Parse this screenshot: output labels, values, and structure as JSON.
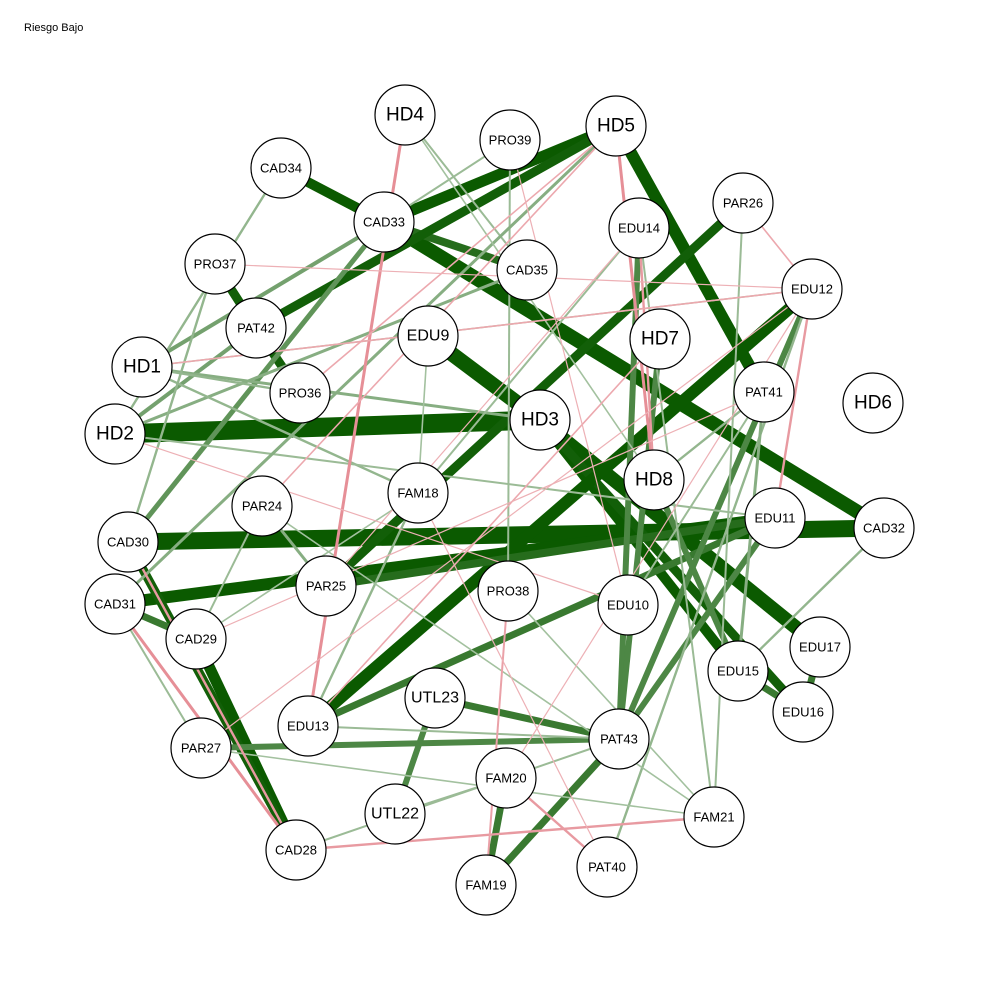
{
  "title": "Riesgo Bajo",
  "colors": {
    "positive": "#0b5a00",
    "negative": "#cc1a2a",
    "node_fill": "#ffffff",
    "node_stroke": "#000000"
  },
  "nodes": [
    {
      "id": "HD1",
      "big": true
    },
    {
      "id": "HD2",
      "big": true
    },
    {
      "id": "HD3",
      "big": true
    },
    {
      "id": "HD4",
      "big": true
    },
    {
      "id": "HD5",
      "big": true
    },
    {
      "id": "HD6",
      "big": true
    },
    {
      "id": "HD7",
      "big": true
    },
    {
      "id": "HD8",
      "big": true
    },
    {
      "id": "EDU9",
      "big": true
    },
    {
      "id": "EDU10"
    },
    {
      "id": "EDU11"
    },
    {
      "id": "EDU12"
    },
    {
      "id": "EDU13"
    },
    {
      "id": "EDU14"
    },
    {
      "id": "EDU15"
    },
    {
      "id": "EDU16"
    },
    {
      "id": "EDU17"
    },
    {
      "id": "FAM18"
    },
    {
      "id": "FAM19"
    },
    {
      "id": "FAM20"
    },
    {
      "id": "FAM21"
    },
    {
      "id": "UTL22",
      "big": true
    },
    {
      "id": "UTL23",
      "big": true
    },
    {
      "id": "PAR24"
    },
    {
      "id": "PAR25"
    },
    {
      "id": "PAR26"
    },
    {
      "id": "PAR27"
    },
    {
      "id": "CAD28"
    },
    {
      "id": "CAD29"
    },
    {
      "id": "CAD30"
    },
    {
      "id": "CAD31"
    },
    {
      "id": "CAD32"
    },
    {
      "id": "CAD33"
    },
    {
      "id": "CAD34"
    },
    {
      "id": "CAD35"
    },
    {
      "id": "PRO36"
    },
    {
      "id": "PRO37"
    },
    {
      "id": "PRO38"
    },
    {
      "id": "PRO39"
    },
    {
      "id": "PAT40"
    },
    {
      "id": "PAT41"
    },
    {
      "id": "PAT42"
    },
    {
      "id": "PAT43"
    }
  ],
  "edges": [
    [
      "HD2",
      "HD3",
      0.95
    ],
    [
      "HD3",
      "EDU9",
      0.75
    ],
    [
      "HD3",
      "EDU17",
      0.7
    ],
    [
      "CAD30",
      "CAD32",
      0.85
    ],
    [
      "CAD33",
      "CAD32",
      0.7
    ],
    [
      "CAD31",
      "EDU11",
      0.6
    ],
    [
      "CAD33",
      "HD5",
      0.55
    ],
    [
      "HD5",
      "PAT41",
      0.6
    ],
    [
      "HD3",
      "EDU15",
      0.5
    ],
    [
      "HD3",
      "EDU16",
      0.45
    ],
    [
      "EDU12",
      "EDU13",
      0.6
    ],
    [
      "CAD29",
      "CAD28",
      0.55
    ],
    [
      "CAD30",
      "CAD28",
      0.45
    ],
    [
      "PAT42",
      "PRO36",
      0.45
    ],
    [
      "PRO37",
      "PAT42",
      0.45
    ],
    [
      "CAD34",
      "CAD33",
      0.5
    ],
    [
      "CAD33",
      "CAD35",
      0.4
    ],
    [
      "HD5",
      "PAT42",
      0.45
    ],
    [
      "PAR25",
      "EDU11",
      0.4
    ],
    [
      "PAR25",
      "PAR26",
      0.45
    ],
    [
      "UTL23",
      "PAT43",
      0.35
    ],
    [
      "EDU13",
      "EDU11",
      0.35
    ],
    [
      "PAR27",
      "PAT43",
      0.3
    ],
    [
      "FAM19",
      "PAT43",
      0.35
    ],
    [
      "FAM19",
      "FAM20",
      0.35
    ],
    [
      "UTL22",
      "UTL23",
      0.3
    ],
    [
      "PAT43",
      "EDU11",
      0.3
    ],
    [
      "PAT43",
      "EDU12",
      0.3
    ],
    [
      "PAT43",
      "EDU14",
      0.3
    ],
    [
      "EDU15",
      "EDU16",
      0.35
    ],
    [
      "EDU16",
      "EDU17",
      0.35
    ],
    [
      "CAD31",
      "CAD29",
      0.35
    ],
    [
      "HD7",
      "PAT43",
      0.3
    ],
    [
      "HD8",
      "EDU15",
      0.3
    ],
    [
      "CAD30",
      "CAD33",
      0.25
    ],
    [
      "HD1",
      "CAD33",
      0.2
    ],
    [
      "HD2",
      "PAT42",
      0.2
    ],
    [
      "HD1",
      "HD3",
      0.15
    ],
    [
      "HD2",
      "CAD35",
      0.15
    ],
    [
      "CAD34",
      "HD2",
      0.12
    ],
    [
      "PAT40",
      "EDU12",
      0.12
    ],
    [
      "FAM21",
      "EDU14",
      0.1
    ],
    [
      "PRO39",
      "PRO38",
      0.1
    ],
    [
      "HD4",
      "CAD35",
      0.1
    ],
    [
      "PRO39",
      "CAD33",
      0.1
    ],
    [
      "PAT41",
      "EDU15",
      0.15
    ],
    [
      "PAT41",
      "HD8",
      0.12
    ],
    [
      "CAD32",
      "EDU15",
      0.12
    ],
    [
      "FAM18",
      "EDU13",
      0.12
    ],
    [
      "PAR24",
      "PAR25",
      0.15
    ],
    [
      "HD1",
      "FAM18",
      0.12
    ],
    [
      "HD1",
      "PRO36",
      0.12
    ],
    [
      "HD2",
      "EDU11",
      0.1
    ],
    [
      "CAD31",
      "PAR27",
      0.1
    ],
    [
      "CAD29",
      "PAR24",
      0.1
    ],
    [
      "EDU9",
      "FAM18",
      0.08
    ],
    [
      "PRO37",
      "CAD30",
      0.12
    ],
    [
      "HD5",
      "CAD31",
      0.15
    ],
    [
      "EDU13",
      "PAT43",
      0.1
    ],
    [
      "UTL22",
      "FAM20",
      0.1
    ],
    [
      "CAD28",
      "PAT43",
      0.1
    ],
    [
      "PRO38",
      "FAM21",
      0.08
    ],
    [
      "FAM18",
      "EDU14",
      0.1
    ],
    [
      "PAR26",
      "FAM21",
      0.1
    ],
    [
      "EDU10",
      "PAT41",
      0.1
    ],
    [
      "HD4",
      "HD8",
      0.08
    ],
    [
      "PAR27",
      "FAM21",
      0.08
    ],
    [
      "CAD29",
      "FAM18",
      0.08
    ],
    [
      "PAR24",
      "FAM21",
      0.08
    ],
    [
      "HD1",
      "EDU12",
      0.08
    ],
    [
      "HD4",
      "EDU13",
      -0.15
    ],
    [
      "HD5",
      "HD8",
      -0.15
    ],
    [
      "EDU14",
      "HD8",
      -0.12
    ],
    [
      "EDU12",
      "EDU11",
      -0.12
    ],
    [
      "CAD30",
      "CAD28",
      -0.12
    ],
    [
      "CAD31",
      "CAD28",
      -0.15
    ],
    [
      "CAD28",
      "FAM21",
      -0.12
    ],
    [
      "PAT40",
      "FAM20",
      -0.12
    ],
    [
      "PRO38",
      "FAM19",
      -0.1
    ],
    [
      "HD5",
      "PRO36",
      -0.08
    ],
    [
      "HD1",
      "EDU12",
      -0.08
    ],
    [
      "PAR24",
      "HD5",
      -0.08
    ],
    [
      "EDU13",
      "HD7",
      -0.08
    ],
    [
      "PAR27",
      "EDU12",
      -0.06
    ],
    [
      "FAM18",
      "PAT40",
      -0.06
    ],
    [
      "PRO39",
      "EDU10",
      -0.06
    ],
    [
      "HD2",
      "EDU10",
      -0.06
    ],
    [
      "CAD29",
      "PAT41",
      -0.06
    ],
    [
      "PAR25",
      "EDU14",
      -0.06
    ],
    [
      "FAM20",
      "EDU12",
      -0.06
    ],
    [
      "PRO37",
      "EDU12",
      -0.06
    ],
    [
      "PAR26",
      "EDU12",
      -0.08
    ]
  ]
}
